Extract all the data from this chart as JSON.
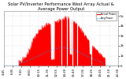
{
  "title": "Solar PV/Inverter Performance West Array Actual & Average Power Output",
  "bg_color": "#ffffff",
  "plot_bg_color": "#ffffff",
  "grid_color": "#aaaaaa",
  "title_color": "#000000",
  "title_fontsize": 3.8,
  "tick_fontsize": 2.8,
  "actual_color": "#ff0000",
  "avg_color": "#00aaff",
  "legend_actual": "Actual Power",
  "legend_avg": "Avg Power",
  "xlim": [
    0,
    287
  ],
  "ylim": [
    0,
    5500
  ],
  "yticks": [
    0,
    1000,
    2000,
    3000,
    4000,
    5000
  ],
  "ytick_labels": [
    "0",
    "1k",
    "2k",
    "3k",
    "4k",
    "5k"
  ],
  "avg_line_y": 600
}
